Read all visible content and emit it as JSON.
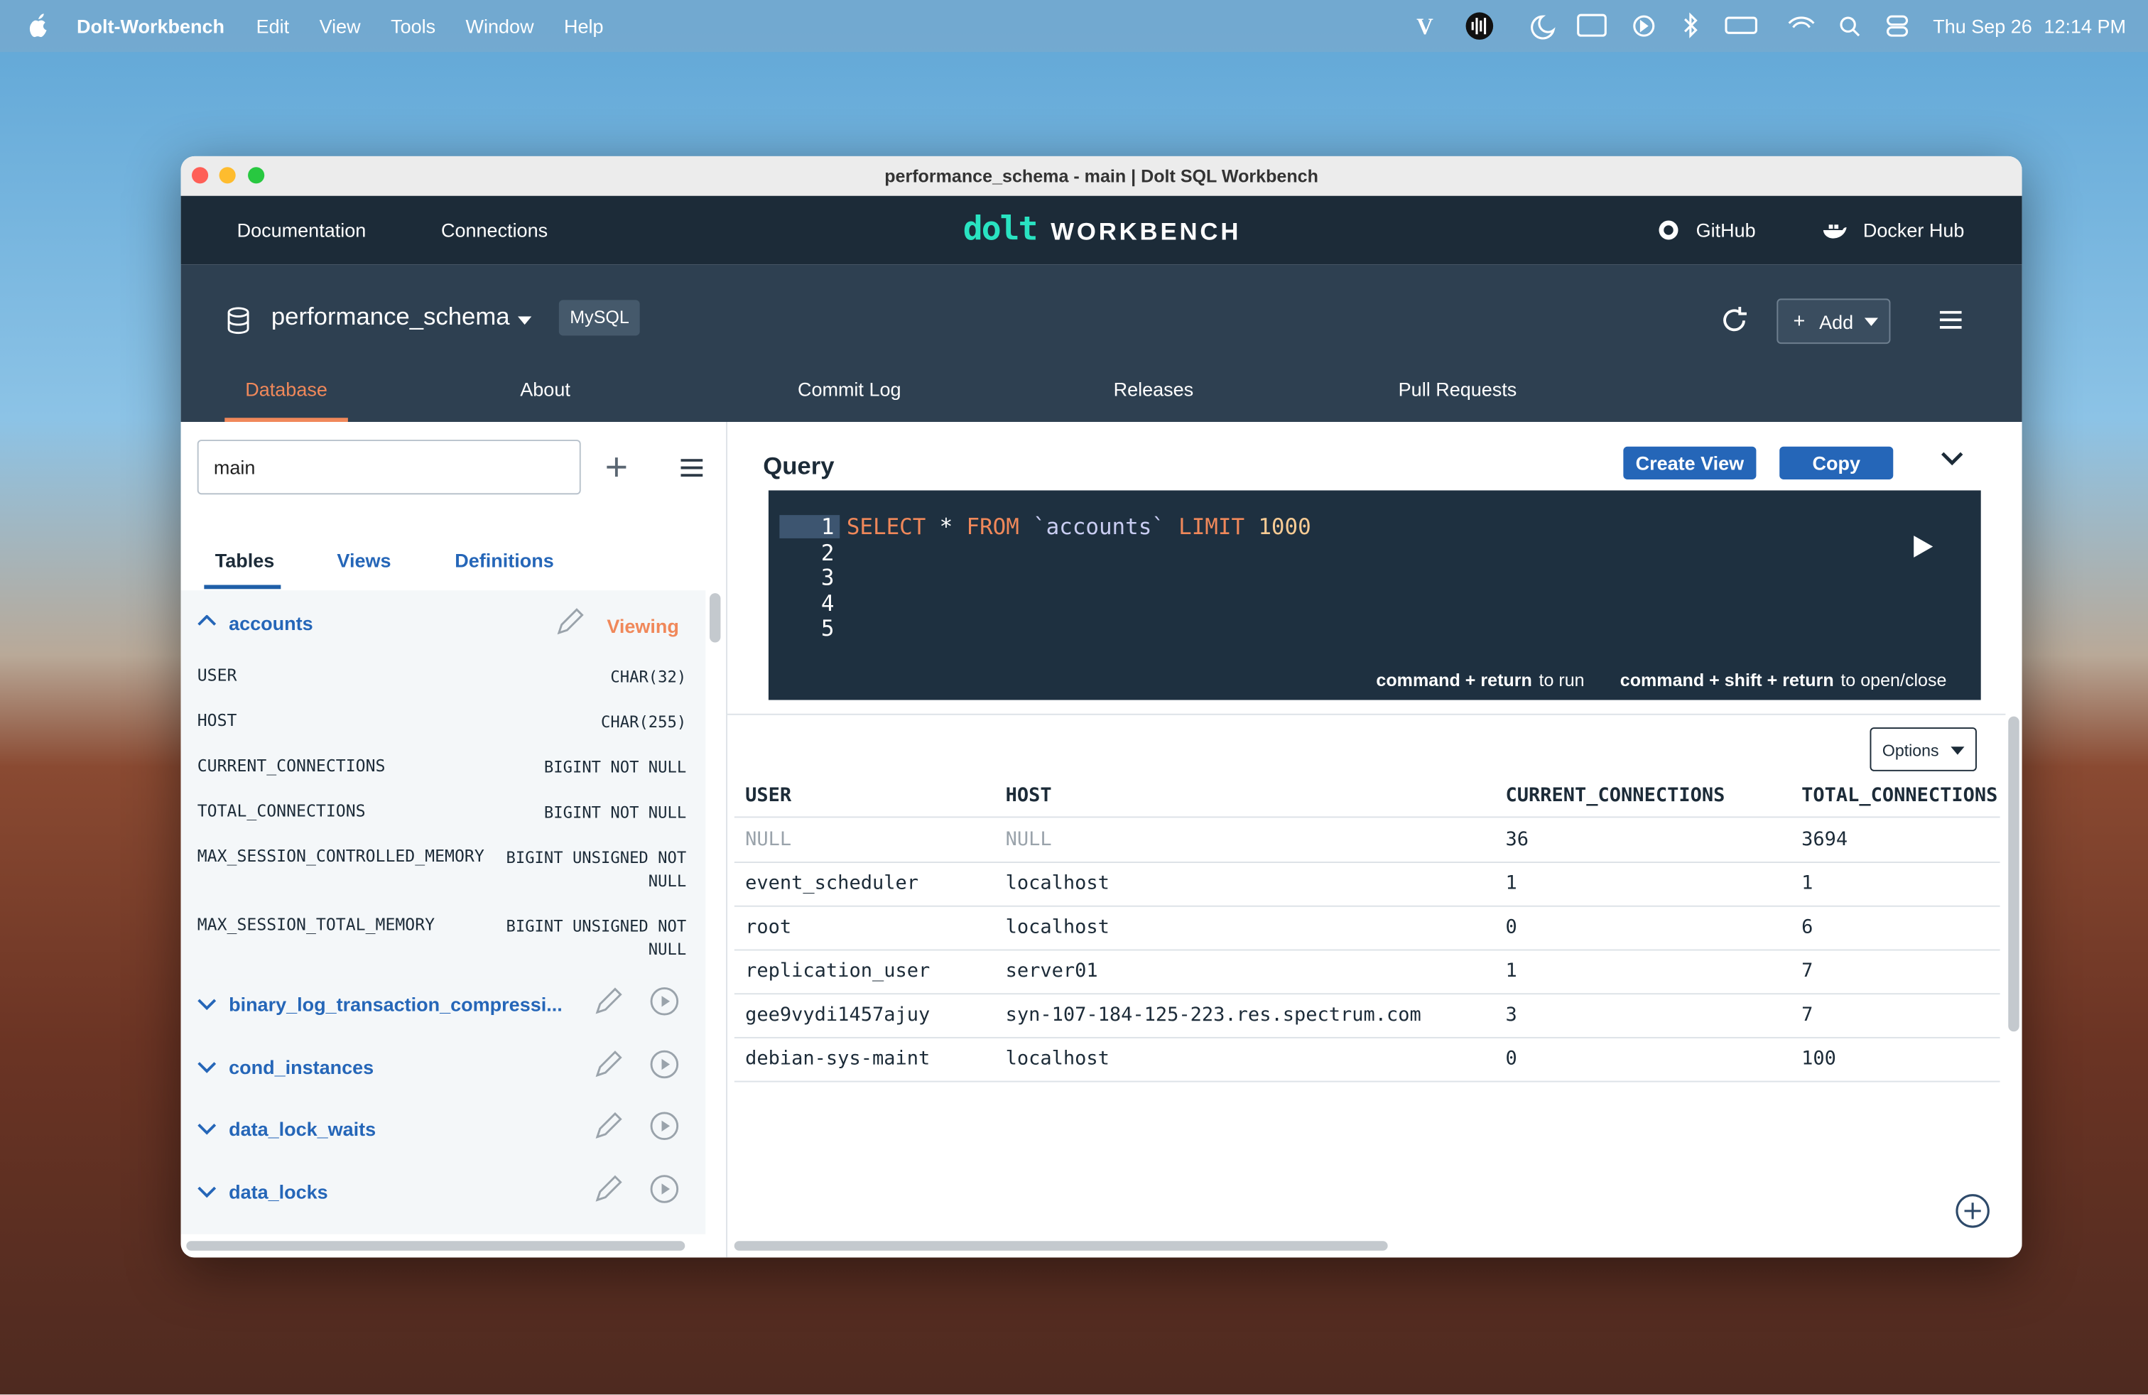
{
  "menubar": {
    "app": "Dolt-Workbench",
    "items": [
      "Edit",
      "View",
      "Tools",
      "Window",
      "Help"
    ],
    "date": "Thu Sep 26",
    "time": "12:14 PM"
  },
  "window": {
    "title": "performance_schema - main | Dolt SQL Workbench"
  },
  "nav": {
    "links": [
      "Documentation",
      "Connections"
    ],
    "logo_mark": "dolt",
    "logo_text": "WORKBENCH",
    "external": [
      "GitHub",
      "Docker Hub"
    ]
  },
  "database": {
    "name": "performance_schema",
    "badge": "MySQL",
    "add": "Add",
    "tabs": [
      "Database",
      "About",
      "Commit Log",
      "Releases",
      "Pull Requests"
    ]
  },
  "sidebar": {
    "branch": "main",
    "tabs": [
      "Tables",
      "Views",
      "Definitions"
    ],
    "active_table": {
      "name": "accounts",
      "status": "Viewing",
      "columns": [
        {
          "name": "USER",
          "type": "CHAR(32)"
        },
        {
          "name": "HOST",
          "type": "CHAR(255)"
        },
        {
          "name": "CURRENT_CONNECTIONS",
          "type": "BIGINT NOT NULL"
        },
        {
          "name": "TOTAL_CONNECTIONS",
          "type": "BIGINT NOT NULL"
        },
        {
          "name": "MAX_SESSION_CONTROLLED_MEMORY",
          "type": "BIGINT UNSIGNED NOT NULL"
        },
        {
          "name": "MAX_SESSION_TOTAL_MEMORY",
          "type": "BIGINT UNSIGNED NOT NULL"
        }
      ]
    },
    "tables": [
      "binary_log_transaction_compressi...",
      "cond_instances",
      "data_lock_waits",
      "data_locks"
    ]
  },
  "query": {
    "label": "Query",
    "buttons": [
      "Create View",
      "Copy"
    ],
    "line_numbers": [
      1,
      2,
      3,
      4,
      5
    ],
    "tokens": [
      {
        "text": "SELECT",
        "color": "#f0885a"
      },
      {
        "text": "*",
        "color": "#ffffff"
      },
      {
        "text": "FROM",
        "color": "#f0885a"
      },
      {
        "text": "`accounts`",
        "color": "#c9cdf2"
      },
      {
        "text": "LIMIT",
        "color": "#f0885a"
      },
      {
        "text": "1000",
        "color": "#f7cb94"
      }
    ],
    "hints": [
      {
        "keys": "command + return",
        "text": "to run"
      },
      {
        "keys": "command + shift + return",
        "text": "to open/close"
      }
    ]
  },
  "results": {
    "options": "Options",
    "columns": [
      "USER",
      "HOST",
      "CURRENT_CONNECTIONS",
      "TOTAL_CONNECTIONS"
    ],
    "rows": [
      [
        "NULL",
        "NULL",
        36,
        3694
      ],
      [
        "event_scheduler",
        "localhost",
        1,
        1
      ],
      [
        "root",
        "localhost",
        0,
        6
      ],
      [
        "replication_user",
        "server01",
        1,
        7
      ],
      [
        "gee9vydi1457ajuy",
        "syn-107-184-125-223.res.spectrum.com",
        3,
        7
      ],
      [
        "debian-sys-maint",
        "localhost",
        0,
        100
      ]
    ]
  }
}
